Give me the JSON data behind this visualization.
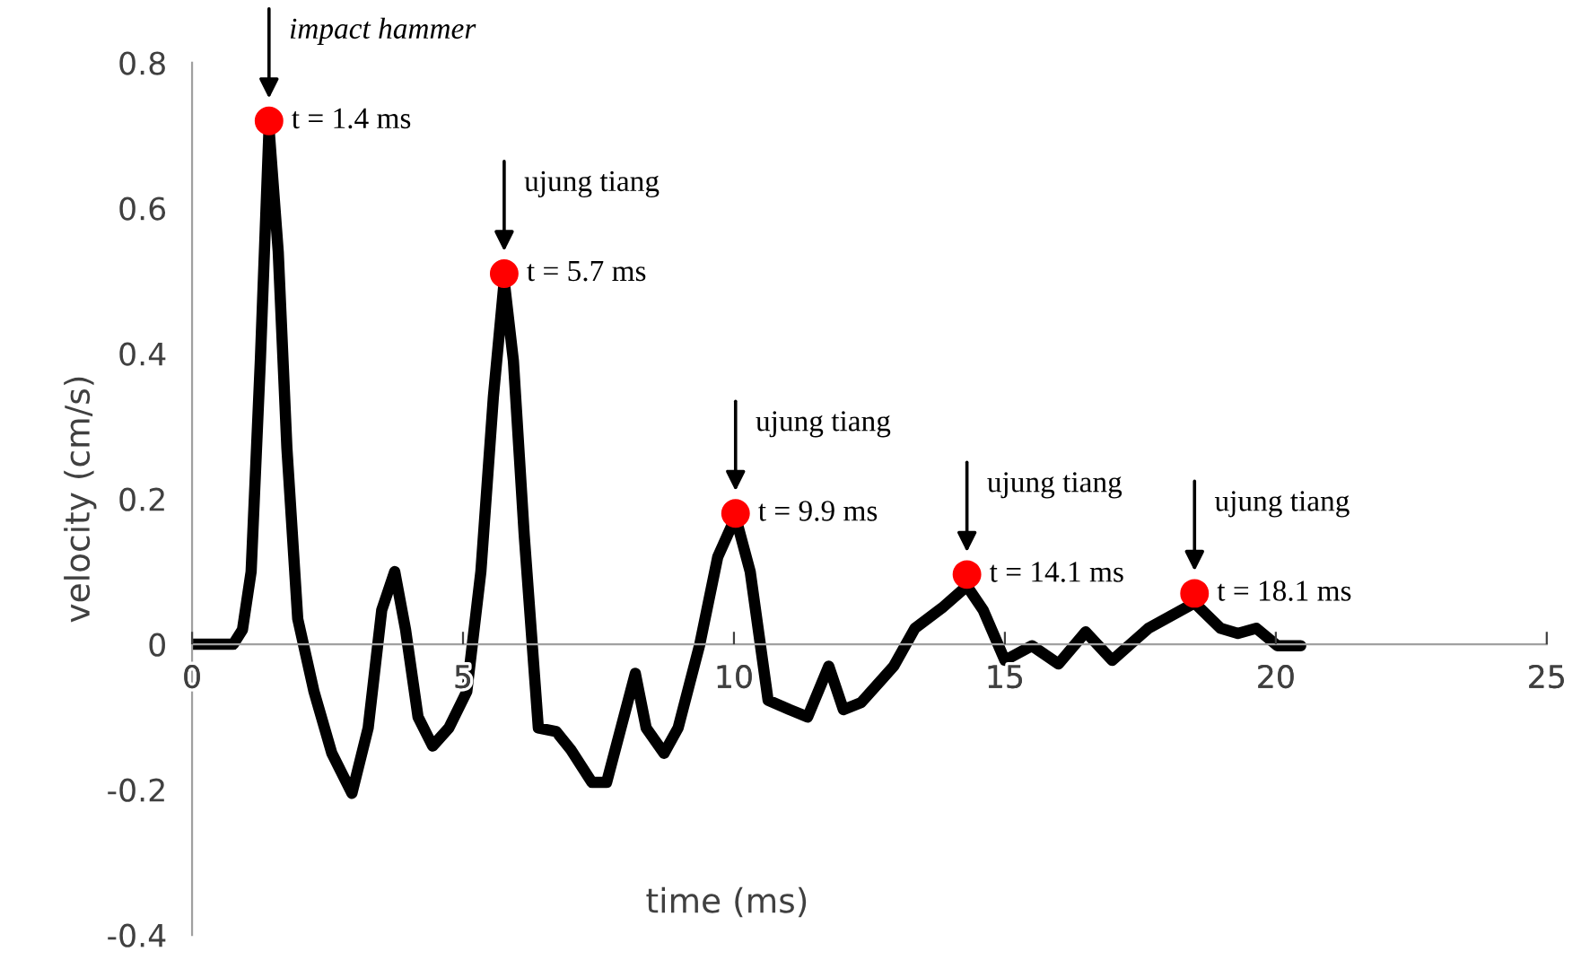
{
  "chart_data": {
    "type": "line",
    "xlabel": "time (ms)",
    "ylabel": "velocity (cm/s)",
    "xlim": [
      0,
      25
    ],
    "xticks": [
      0,
      5,
      10,
      15,
      20,
      25
    ],
    "ylim": [
      -0.4,
      0.8
    ],
    "yticks": [
      -0.4,
      -0.2,
      0,
      0.2,
      0.4,
      0.6,
      0.8
    ],
    "grid": false,
    "legend": false,
    "series": [
      {
        "color": "#000000",
        "marker": "none",
        "x": [
          0,
          0.76,
          0.93,
          1.09,
          1.26,
          1.42,
          1.59,
          1.75,
          1.95,
          2.25,
          2.58,
          2.95,
          3.25,
          3.5,
          3.74,
          3.94,
          4.17,
          4.44,
          4.74,
          5.07,
          5.33,
          5.56,
          5.76,
          5.93,
          6.13,
          6.39,
          6.72,
          6.99,
          7.38,
          7.65,
          7.88,
          8.18,
          8.38,
          8.71,
          8.97,
          9.37,
          9.7,
          10.03,
          10.3,
          10.63,
          11.03,
          11.36,
          11.75,
          12.02,
          12.35,
          12.95,
          13.34,
          13.84,
          14.3,
          14.6,
          15.0,
          15.5,
          15.99,
          16.49,
          16.98,
          17.65,
          18.5,
          18.98,
          19.3,
          19.64,
          20.03,
          20.46
        ],
        "values": [
          0,
          0,
          0.02,
          0.1,
          0.39,
          0.71,
          0.54,
          0.27,
          0.035,
          -0.065,
          -0.15,
          -0.205,
          -0.115,
          0.047,
          0.1,
          0.02,
          -0.1,
          -0.14,
          -0.115,
          -0.065,
          0.1,
          0.34,
          0.5,
          0.39,
          0.15,
          -0.115,
          -0.12,
          -0.145,
          -0.19,
          -0.19,
          -0.125,
          -0.04,
          -0.115,
          -0.15,
          -0.115,
          0,
          0.12,
          0.175,
          0.1,
          -0.077,
          -0.09,
          -0.1,
          -0.03,
          -0.09,
          -0.08,
          -0.03,
          0.022,
          0.05,
          0.08,
          0.047,
          -0.022,
          -0.002,
          -0.027,
          0.017,
          -0.022,
          0.022,
          0.057,
          0.022,
          0.015,
          0.022,
          -0.002,
          -0.002
        ]
      },
      {
        "type": "scatter",
        "color": "#ff0000",
        "marker": "circle",
        "x": [
          1.42,
          5.76,
          10.03,
          14.3,
          18.5
        ],
        "values": [
          0.72,
          0.51,
          0.18,
          0.096,
          0.07
        ]
      }
    ],
    "annotations": [
      {
        "text": "impact hammer",
        "x": 1.42,
        "y": 0.72
      },
      {
        "text": "t = 1.4 ms",
        "x": 1.42,
        "y": 0.72
      },
      {
        "text": "ujung tiang",
        "x": 5.76,
        "y": 0.51
      },
      {
        "text": "t = 5.7 ms",
        "x": 5.76,
        "y": 0.51
      },
      {
        "text": "ujung tiang",
        "x": 10.03,
        "y": 0.18
      },
      {
        "text": "t = 9.9 ms",
        "x": 10.03,
        "y": 0.18
      },
      {
        "text": "ujung tiang",
        "x": 14.3,
        "y": 0.096
      },
      {
        "text": "t = 14.1 ms",
        "x": 14.3,
        "y": 0.096
      },
      {
        "text": "ujung tiang",
        "x": 18.5,
        "y": 0.07
      },
      {
        "text": "t = 18.1 ms",
        "x": 18.5,
        "y": 0.07
      }
    ]
  }
}
